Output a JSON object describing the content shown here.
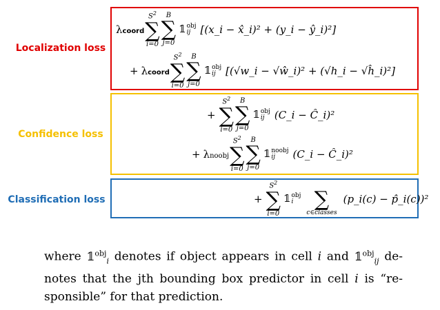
{
  "labels": {
    "localization": "Localization loss",
    "confidence": "Confidence loss",
    "classification": "Classification loss"
  },
  "colors": {
    "localization": "#e00000",
    "confidence": "#f5c000",
    "classification": "#1f6db5"
  },
  "math": {
    "lambda_coord": "λ",
    "coord": "coord",
    "noobj_sub": "noobj",
    "obj": "obj",
    "noobj": "noobj",
    "ij": "ij",
    "i": "i",
    "S2": "S",
    "B": "B",
    "i0": "i=0",
    "j0": "j=0",
    "classes": "c∈classes",
    "sigma": "∑",
    "indicator": "𝟙",
    "term_xy": "[(x_i − x̂_i)² + (y_i − ŷ_i)²]",
    "term_wh": "[(√w_i − √ŵ_i)² + (√h_i − √ĥ_i)²]",
    "term_c": "(C_i − Ĉ_i)²",
    "term_p": "(p_i(c) − p̂_i(c))²",
    "plus": "+"
  },
  "description": {
    "p1": "where ",
    "p2": " denotes if object appears in cell ",
    "p3": " and ",
    "p4": " de-notes that the ",
    "p5": "jth bounding box predictor in cell ",
    "p6": "i",
    "p7": " is “re-sponsible” for that prediction."
  }
}
